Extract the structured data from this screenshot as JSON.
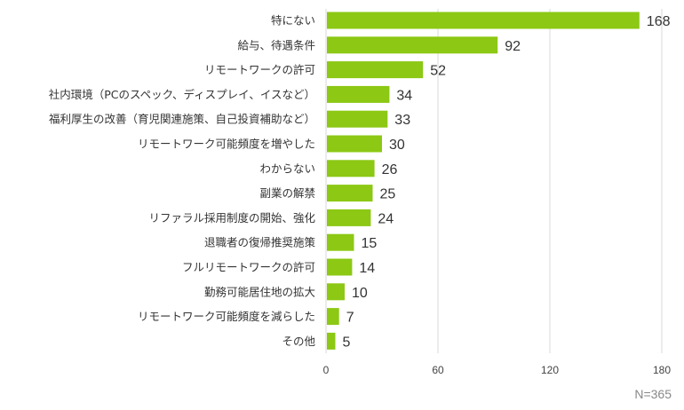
{
  "chart_data": {
    "type": "bar",
    "orientation": "horizontal",
    "categories": [
      "特にない",
      "給与、待遇条件",
      "リモートワークの許可",
      "社内環境（PCのスペック、ディスプレイ、イスなど）",
      "福利厚生の改善（育児関連施策、自己投資補助など）",
      "リモートワーク可能頻度を増やした",
      "わからない",
      "副業の解禁",
      "リファラル採用制度の開始、強化",
      "退職者の復帰推奨施策",
      "フルリモートワークの許可",
      "勤務可能居住地の拡大",
      "リモートワーク可能頻度を減らした",
      "その他"
    ],
    "values": [
      168,
      92,
      52,
      34,
      33,
      30,
      26,
      25,
      24,
      15,
      14,
      10,
      7,
      5
    ],
    "xlim": [
      0,
      180
    ],
    "xticks": [
      0,
      60,
      120,
      180
    ],
    "grid": true,
    "bar_color": "#8cc814",
    "note": "N=365"
  }
}
